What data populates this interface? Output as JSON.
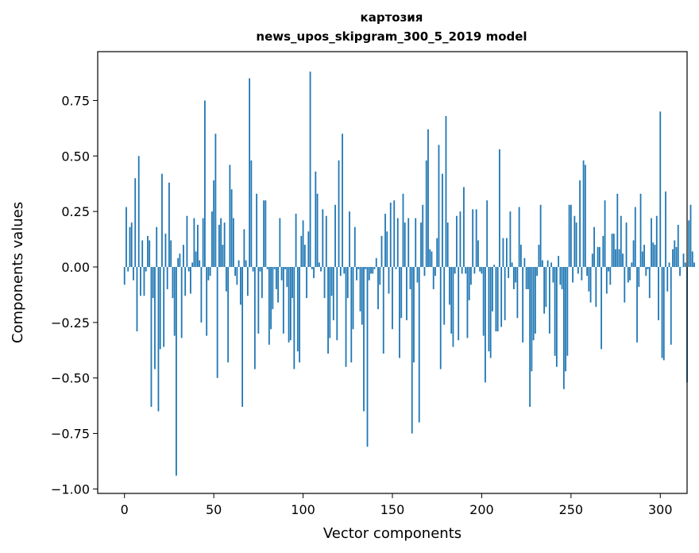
{
  "chart_data": {
    "type": "bar",
    "title": "картозия",
    "subtitle": "news_upos_skipgram_300_5_2019 model",
    "xlabel": "Vector components",
    "ylabel": "Components values",
    "xlim": [
      -15,
      315
    ],
    "ylim": [
      -1.02,
      0.97
    ],
    "xticks": [
      0,
      50,
      100,
      150,
      200,
      250,
      300
    ],
    "xtick_labels": [
      "0",
      "50",
      "100",
      "150",
      "200",
      "250",
      "300"
    ],
    "yticks": [
      -1.0,
      -0.75,
      -0.5,
      -0.25,
      0.0,
      0.25,
      0.5,
      0.75
    ],
    "ytick_labels": [
      "−1.00",
      "−0.75",
      "−0.50",
      "−0.25",
      "0.00",
      "0.25",
      "0.50",
      "0.75"
    ],
    "grid": false,
    "bar_color": "#1f77b4",
    "x_start": 0,
    "values": [
      -0.08,
      0.27,
      -0.02,
      0.18,
      0.2,
      -0.06,
      0.4,
      -0.29,
      0.5,
      -0.13,
      0.12,
      -0.13,
      -0.02,
      0.14,
      0.12,
      -0.63,
      -0.14,
      -0.46,
      0.18,
      -0.65,
      -0.37,
      0.42,
      -0.36,
      0.15,
      -0.1,
      0.38,
      0.12,
      -0.14,
      -0.31,
      -0.94,
      0.04,
      0.06,
      -0.32,
      0.1,
      -0.13,
      0.23,
      -0.02,
      -0.12,
      0.02,
      0.22,
      0.07,
      0.19,
      0.03,
      -0.25,
      0.22,
      0.75,
      -0.31,
      -0.06,
      -0.04,
      0.25,
      0.39,
      0.6,
      -0.5,
      0.19,
      0.22,
      0.1,
      0.2,
      -0.11,
      -0.43,
      0.46,
      0.35,
      0.22,
      -0.04,
      -0.08,
      0.03,
      -0.17,
      -0.63,
      0.17,
      0.03,
      -0.13,
      0.85,
      0.48,
      -0.02,
      -0.46,
      0.33,
      -0.3,
      -0.02,
      -0.14,
      0.3,
      0.3,
      -0.01,
      -0.35,
      -0.28,
      -0.19,
      -0.01,
      -0.1,
      -0.16,
      0.22,
      -0.06,
      -0.3,
      -0.01,
      -0.09,
      -0.34,
      -0.33,
      -0.14,
      -0.46,
      0.24,
      -0.38,
      -0.43,
      0.14,
      0.21,
      0.1,
      -0.14,
      0.16,
      0.88,
      -0.01,
      -0.05,
      0.43,
      0.33,
      0.02,
      -0.02,
      0.26,
      -0.14,
      0.23,
      -0.39,
      -0.32,
      -0.13,
      -0.24,
      0.28,
      -0.33,
      0.48,
      -0.04,
      0.6,
      -0.03,
      -0.45,
      -0.14,
      0.25,
      -0.43,
      -0.28,
      0.18,
      -0.06,
      -0.01,
      -0.2,
      -0.26,
      -0.65,
      -0.01,
      -0.81,
      -0.06,
      -0.03,
      -0.03,
      -0.01,
      0.04,
      -0.19,
      -0.08,
      0.14,
      -0.39,
      0.24,
      0.16,
      -0.12,
      0.29,
      -0.28,
      0.3,
      -0.01,
      0.22,
      -0.41,
      -0.23,
      0.33,
      0.2,
      -0.24,
      0.22,
      -0.1,
      -0.75,
      -0.43,
      0.22,
      -0.07,
      -0.7,
      0.2,
      0.28,
      -0.04,
      0.48,
      0.62,
      0.08,
      0.07,
      -0.1,
      -0.04,
      0.13,
      0.55,
      -0.46,
      0.42,
      -0.26,
      0.68,
      0.2,
      -0.17,
      -0.3,
      -0.36,
      -0.03,
      0.23,
      -0.33,
      0.25,
      -0.03,
      0.36,
      -0.03,
      -0.32,
      -0.15,
      -0.08,
      0.26,
      -0.03,
      0.26,
      0.12,
      -0.02,
      -0.03,
      -0.31,
      -0.52,
      0.3,
      -0.38,
      -0.41,
      -0.2,
      0.01,
      -0.29,
      -0.29,
      0.53,
      -0.27,
      0.13,
      -0.24,
      0.13,
      -0.05,
      0.25,
      0.02,
      -0.1,
      -0.07,
      -0.23,
      0.27,
      0.1,
      -0.34,
      0.04,
      -0.1,
      -0.1,
      -0.63,
      -0.47,
      -0.33,
      -0.3,
      -0.04,
      0.1,
      0.28,
      0.03,
      -0.21,
      -0.18,
      0.03,
      -0.3,
      0.02,
      -0.07,
      -0.4,
      -0.45,
      0.05,
      -0.08,
      -0.1,
      -0.55,
      -0.47,
      -0.4,
      0.28,
      0.28,
      -0.07,
      0.23,
      0.2,
      -0.03,
      0.39,
      -0.06,
      0.48,
      0.46,
      -0.04,
      -0.11,
      -0.16,
      0.06,
      0.18,
      -0.18,
      0.09,
      0.09,
      -0.37,
      0.14,
      0.3,
      -0.12,
      -0.02,
      -0.08,
      0.15,
      0.15,
      0.08,
      0.33,
      0.08,
      0.23,
      0.06,
      -0.16,
      0.2,
      -0.07,
      -0.06,
      0.02,
      0.12,
      0.27,
      -0.34,
      -0.09,
      0.33,
      0.07,
      0.1,
      -0.04,
      -0.01,
      -0.14,
      0.22,
      0.11,
      0.1,
      0.23,
      -0.24,
      0.7,
      -0.41,
      -0.42,
      0.34,
      -0.11,
      0.02,
      -0.35,
      0.08,
      0.12,
      0.09,
      0.19,
      -0.04,
      0.0,
      0.06,
      0.02,
      -0.52,
      0.21,
      0.28,
      0.07,
      0.02
    ]
  }
}
